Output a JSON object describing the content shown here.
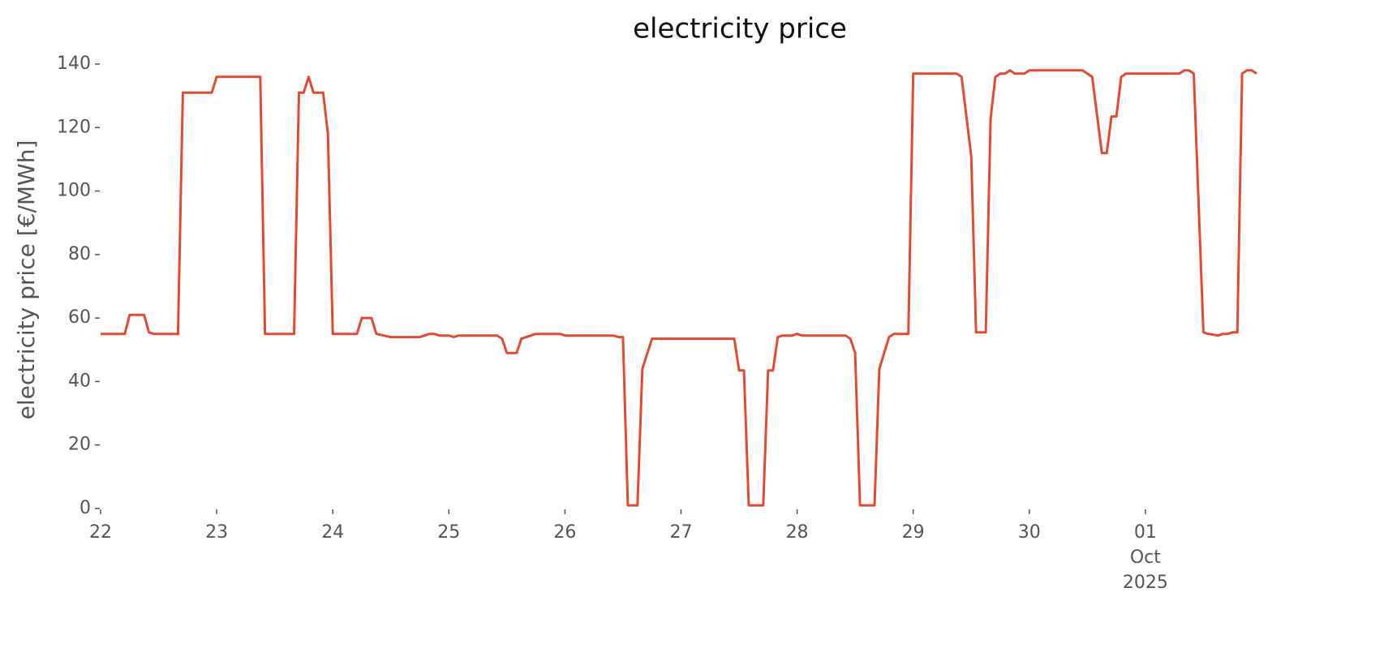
{
  "chart_data": {
    "type": "line",
    "title": "electricity price",
    "ylabel": "electricity price [€/MWh]",
    "x": [
      "2025-09-22 00:00",
      "2025-09-22 05:00",
      "2025-09-22 06:00",
      "2025-09-22 09:00",
      "2025-09-22 10:00",
      "2025-09-22 11:00",
      "2025-09-22 16:00",
      "2025-09-22 17:00",
      "2025-09-22 23:00",
      "2025-09-23 00:00",
      "2025-09-23 09:00",
      "2025-09-23 10:00",
      "2025-09-23 12:00",
      "2025-09-23 13:00",
      "2025-09-23 14:00",
      "2025-09-23 16:00",
      "2025-09-23 17:00",
      "2025-09-23 18:00",
      "2025-09-23 19:00",
      "2025-09-23 20:00",
      "2025-09-23 22:00",
      "2025-09-23 23:00",
      "2025-09-24 00:00",
      "2025-09-24 05:00",
      "2025-09-24 06:00",
      "2025-09-24 08:00",
      "2025-09-24 09:00",
      "2025-09-24 12:00",
      "2025-09-24 18:00",
      "2025-09-24 20:00",
      "2025-09-24 21:00",
      "2025-09-24 22:00",
      "2025-09-25 00:00",
      "2025-09-25 01:00",
      "2025-09-25 02:00",
      "2025-09-25 10:00",
      "2025-09-25 11:00",
      "2025-09-25 12:00",
      "2025-09-25 14:00",
      "2025-09-25 15:00",
      "2025-09-25 18:00",
      "2025-09-25 23:00",
      "2025-09-26 00:00",
      "2025-09-26 10:00",
      "2025-09-26 11:00",
      "2025-09-26 12:00",
      "2025-09-26 13:00",
      "2025-09-26 15:00",
      "2025-09-26 16:00",
      "2025-09-26 18:00",
      "2025-09-27 11:00",
      "2025-09-27 12:00",
      "2025-09-27 13:00",
      "2025-09-27 14:00",
      "2025-09-27 17:00",
      "2025-09-27 18:00",
      "2025-09-27 19:00",
      "2025-09-27 20:00",
      "2025-09-27 21:00",
      "2025-09-27 23:00",
      "2025-09-28 00:00",
      "2025-09-28 01:00",
      "2025-09-28 10:00",
      "2025-09-28 11:00",
      "2025-09-28 12:00",
      "2025-09-28 13:00",
      "2025-09-28 16:00",
      "2025-09-28 17:00",
      "2025-09-28 19:00",
      "2025-09-28 20:00",
      "2025-09-28 23:00",
      "2025-09-29 00:00",
      "2025-09-29 09:00",
      "2025-09-29 10:00",
      "2025-09-29 12:00",
      "2025-09-29 13:00",
      "2025-09-29 15:00",
      "2025-09-29 16:00",
      "2025-09-29 17:00",
      "2025-09-29 18:00",
      "2025-09-29 19:00",
      "2025-09-29 20:00",
      "2025-09-29 21:00",
      "2025-09-29 23:00",
      "2025-09-30 00:00",
      "2025-09-30 11:00",
      "2025-09-30 13:00",
      "2025-09-30 15:00",
      "2025-09-30 16:00",
      "2025-09-30 17:00",
      "2025-09-30 18:00",
      "2025-09-30 19:00",
      "2025-09-30 20:00",
      "2025-10-01 07:00",
      "2025-10-01 08:00",
      "2025-10-01 09:00",
      "2025-10-01 10:00",
      "2025-10-01 12:00",
      "2025-10-01 13:00",
      "2025-10-01 15:00",
      "2025-10-01 16:00",
      "2025-10-01 17:00",
      "2025-10-01 18:00",
      "2025-10-01 19:00",
      "2025-10-01 20:00",
      "2025-10-01 21:00",
      "2025-10-01 22:00",
      "2025-10-01 23:00"
    ],
    "series": [
      {
        "color": "#e24a33",
        "values": [
          55,
          55,
          61,
          61,
          55.5,
          55,
          55,
          131,
          131,
          136,
          136,
          55,
          55,
          55,
          55,
          55,
          131,
          131,
          136,
          131,
          131,
          118,
          55,
          55,
          60,
          60,
          55,
          54,
          54,
          55,
          55,
          54.5,
          54.5,
          54,
          54.5,
          54.5,
          53.5,
          49,
          49,
          53.5,
          55,
          55,
          54.5,
          54.5,
          54,
          54,
          1,
          1,
          44,
          53.5,
          53.5,
          43.5,
          43.5,
          1,
          1,
          43.5,
          43.5,
          54,
          54.5,
          54.5,
          55,
          54.5,
          54.5,
          53.5,
          49,
          1,
          1,
          44,
          54,
          55,
          55,
          137,
          137,
          136,
          111,
          55.5,
          55.5,
          123,
          136,
          137,
          137,
          138,
          137,
          137,
          138,
          138,
          136,
          112,
          112,
          123.5,
          123.5,
          136,
          137,
          137,
          138,
          138,
          137,
          55.5,
          55,
          54.5,
          55,
          55,
          55.5,
          55.5,
          137,
          138,
          138,
          137
        ]
      }
    ],
    "xlim": [
      "2025-09-22 00:00",
      "2025-10-01 23:00"
    ],
    "xticks": [
      {
        "value": "2025-09-22 00:00",
        "label": "22"
      },
      {
        "value": "2025-09-23 00:00",
        "label": "23"
      },
      {
        "value": "2025-09-24 00:00",
        "label": "24"
      },
      {
        "value": "2025-09-25 00:00",
        "label": "25"
      },
      {
        "value": "2025-09-26 00:00",
        "label": "26"
      },
      {
        "value": "2025-09-27 00:00",
        "label": "27"
      },
      {
        "value": "2025-09-28 00:00",
        "label": "28"
      },
      {
        "value": "2025-09-29 00:00",
        "label": "29"
      },
      {
        "value": "2025-09-30 00:00",
        "label": "30"
      },
      {
        "value": "2025-10-01 00:00",
        "label": "01\nOct\n2025"
      }
    ],
    "ylim": [
      0,
      140
    ],
    "yticks": [
      0,
      20,
      40,
      60,
      80,
      100,
      120,
      140
    ],
    "grid": false
  }
}
